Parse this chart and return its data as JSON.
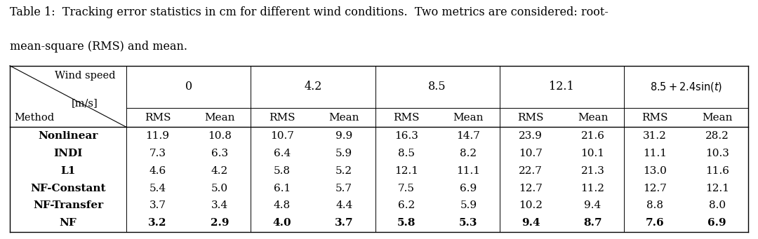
{
  "wind_speeds": [
    "0",
    "4.2",
    "8.5",
    "12.1",
    "8.5 + 2.4sin(t)"
  ],
  "methods": [
    "Nonlinear",
    "INDI",
    "L1",
    "NF-Constant",
    "NF-Transfer",
    "NF"
  ],
  "bold_row": "NF",
  "data": {
    "Nonlinear": {
      "0": [
        11.9,
        10.8
      ],
      "4.2": [
        10.7,
        9.9
      ],
      "8.5": [
        16.3,
        14.7
      ],
      "12.1": [
        23.9,
        21.6
      ],
      "8.5 + 2.4sin(t)": [
        31.2,
        28.2
      ]
    },
    "INDI": {
      "0": [
        7.3,
        6.3
      ],
      "4.2": [
        6.4,
        5.9
      ],
      "8.5": [
        8.5,
        8.2
      ],
      "12.1": [
        10.7,
        10.1
      ],
      "8.5 + 2.4sin(t)": [
        11.1,
        10.3
      ]
    },
    "L1": {
      "0": [
        4.6,
        4.2
      ],
      "4.2": [
        5.8,
        5.2
      ],
      "8.5": [
        12.1,
        11.1
      ],
      "12.1": [
        22.7,
        21.3
      ],
      "8.5 + 2.4sin(t)": [
        13.0,
        11.6
      ]
    },
    "NF-Constant": {
      "0": [
        5.4,
        5.0
      ],
      "4.2": [
        6.1,
        5.7
      ],
      "8.5": [
        7.5,
        6.9
      ],
      "12.1": [
        12.7,
        11.2
      ],
      "8.5 + 2.4sin(t)": [
        12.7,
        12.1
      ]
    },
    "NF-Transfer": {
      "0": [
        3.7,
        3.4
      ],
      "4.2": [
        4.8,
        4.4
      ],
      "8.5": [
        6.2,
        5.9
      ],
      "12.1": [
        10.2,
        9.4
      ],
      "8.5 + 2.4sin(t)": [
        8.8,
        8.0
      ]
    },
    "NF": {
      "0": [
        3.2,
        2.9
      ],
      "4.2": [
        4.0,
        3.7
      ],
      "8.5": [
        5.8,
        5.3
      ],
      "12.1": [
        9.4,
        8.7
      ],
      "8.5 + 2.4sin(t)": [
        7.6,
        6.9
      ]
    }
  },
  "bg_color": "#ffffff",
  "text_color": "#000000",
  "border_color": "#000000",
  "caption_fs": 11.5,
  "table_fs": 11.0,
  "figsize": [
    10.8,
    3.41
  ],
  "dpi": 100
}
